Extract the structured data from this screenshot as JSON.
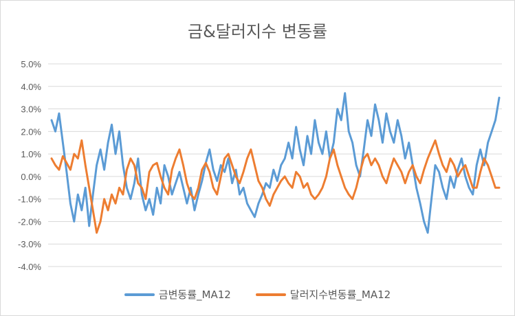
{
  "chart_data": {
    "type": "line",
    "title": "금&달러지수 변동률",
    "y_ticks": [
      "5.0%",
      "4.0%",
      "3.0%",
      "2.0%",
      "1.0%",
      "0.0%",
      "-1.0%",
      "-2.0%",
      "-3.0%",
      "-4.0%"
    ],
    "ylim": [
      -4.0,
      5.0
    ],
    "y_unit": "%",
    "grid": "horizontal",
    "legend_position": "bottom",
    "x_points": 120,
    "series": [
      {
        "name": "금변동률_MA12",
        "color": "#5B9BD5",
        "values": [
          2.5,
          2.0,
          2.8,
          1.5,
          0.2,
          -1.2,
          -2.0,
          -0.8,
          -1.5,
          -0.5,
          -2.2,
          -0.8,
          0.5,
          1.2,
          0.3,
          1.5,
          2.3,
          1.0,
          2.0,
          0.5,
          -0.5,
          -1.0,
          -0.3,
          0.8,
          -0.8,
          -1.5,
          -1.0,
          -1.7,
          -0.5,
          -1.2,
          0.5,
          0.0,
          -0.8,
          -0.3,
          0.2,
          -0.5,
          -1.2,
          -0.5,
          -1.5,
          -0.8,
          -0.2,
          0.6,
          1.2,
          0.3,
          -0.2,
          0.5,
          0.2,
          0.8,
          -0.3,
          0.3,
          -0.8,
          -0.5,
          -1.2,
          -1.5,
          -1.8,
          -1.2,
          -0.8,
          -0.3,
          -0.5,
          0.3,
          -0.2,
          0.5,
          0.8,
          1.5,
          0.8,
          2.2,
          1.2,
          0.5,
          1.8,
          1.0,
          2.5,
          1.5,
          1.0,
          2.0,
          0.8,
          1.5,
          3.0,
          2.5,
          3.7,
          2.0,
          1.5,
          0.5,
          0.0,
          1.2,
          2.5,
          1.8,
          3.2,
          2.5,
          1.5,
          2.8,
          2.0,
          1.5,
          2.5,
          1.8,
          0.8,
          1.5,
          0.5,
          -0.5,
          -1.2,
          -2.0,
          -2.5,
          -1.0,
          0.5,
          0.2,
          -0.5,
          -1.0,
          0.0,
          -0.5,
          0.3,
          0.8,
          0.0,
          -0.5,
          -0.8,
          0.5,
          1.2,
          0.5,
          1.5,
          2.0,
          2.5,
          3.5
        ]
      },
      {
        "name": "달러지수변동률_MA12",
        "color": "#ED7D31",
        "values": [
          0.8,
          0.5,
          0.3,
          0.9,
          0.6,
          0.3,
          1.0,
          0.8,
          1.6,
          0.5,
          -0.5,
          -1.5,
          -2.5,
          -2.0,
          -1.0,
          -1.5,
          -0.8,
          -1.2,
          -0.5,
          -0.8,
          0.3,
          0.8,
          0.5,
          -0.3,
          -0.5,
          -1.0,
          0.2,
          0.5,
          0.6,
          0.0,
          -0.5,
          -0.8,
          0.3,
          0.8,
          1.2,
          0.5,
          -0.3,
          -0.8,
          -1.0,
          -0.5,
          0.3,
          0.6,
          0.2,
          -0.5,
          -0.8,
          0.0,
          0.8,
          1.0,
          0.5,
          0.0,
          -0.3,
          0.2,
          0.8,
          1.2,
          0.5,
          -0.2,
          -0.5,
          -1.0,
          -1.3,
          -0.8,
          -0.5,
          -0.2,
          0.0,
          -0.3,
          -0.5,
          0.2,
          0.0,
          -0.5,
          -0.3,
          -0.8,
          -1.0,
          -0.8,
          -0.5,
          0.0,
          0.8,
          1.2,
          0.5,
          0.0,
          -0.5,
          -0.8,
          -1.0,
          -0.5,
          0.2,
          0.8,
          1.0,
          0.5,
          0.8,
          0.5,
          0.0,
          -0.3,
          0.3,
          0.8,
          0.5,
          0.2,
          -0.3,
          0.2,
          0.5,
          0.0,
          -0.3,
          0.3,
          0.8,
          1.2,
          1.6,
          1.0,
          0.5,
          0.2,
          0.8,
          0.5,
          0.0,
          0.3,
          0.5,
          0.0,
          -0.5,
          -0.5,
          0.2,
          0.8,
          0.5,
          0.0,
          -0.5,
          -0.5
        ]
      }
    ]
  }
}
